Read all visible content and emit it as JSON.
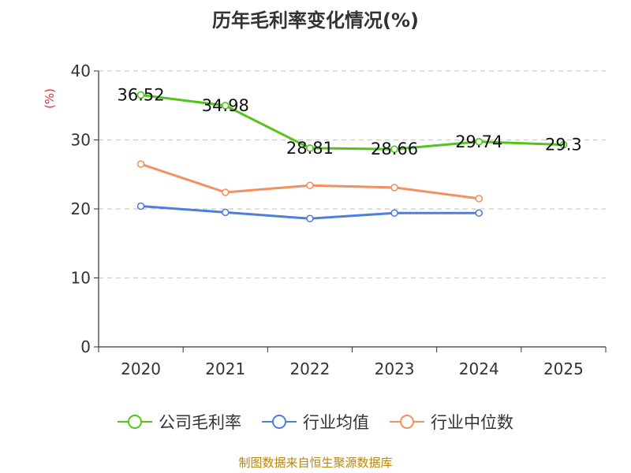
{
  "chart_data": {
    "type": "line",
    "title": "历年毛利率变化情况(%)",
    "ylabel": "(%)",
    "xlabel": "",
    "categories": [
      "2020",
      "2021",
      "2022",
      "2023",
      "2024",
      "2025"
    ],
    "ylim": [
      0,
      40
    ],
    "yticks": [
      0,
      10,
      20,
      30,
      40
    ],
    "grid": true,
    "legend_position": "bottom",
    "series": [
      {
        "name": "公司毛利率",
        "color": "#52c41a",
        "values": [
          36.52,
          34.98,
          28.81,
          28.66,
          29.74,
          29.3
        ],
        "data_labels": [
          "36.52",
          "34.98",
          "28.81",
          "28.66",
          "29.74",
          "29.3"
        ]
      },
      {
        "name": "行业均值",
        "color": "#4e7fdc",
        "values": [
          20.4,
          19.5,
          18.6,
          19.4,
          19.4,
          null
        ]
      },
      {
        "name": "行业中位数",
        "color": "#f39060",
        "values": [
          26.5,
          22.4,
          23.4,
          23.1,
          21.5,
          null
        ]
      }
    ]
  },
  "source": "制图数据来自恒生聚源数据库"
}
